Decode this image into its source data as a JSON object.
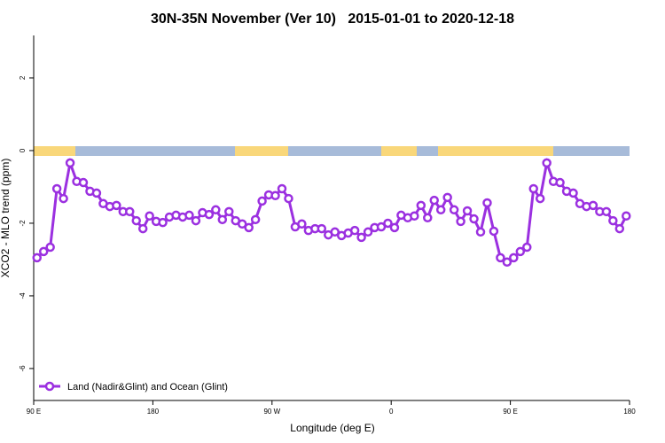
{
  "chart_data": {
    "type": "line",
    "title": "30N-35N November (Ver 10)   2015-01-01 to 2020-12-18",
    "x_label": "Longitude (deg E)",
    "y_label": "XCO2 - MLO trend (ppm)",
    "xlim": [
      90,
      540
    ],
    "ylim": [
      -6.88,
      3.17
    ],
    "xticks": [
      {
        "value": 90,
        "label": "90 E"
      },
      {
        "value": 180,
        "label": "180"
      },
      {
        "value": 270,
        "label": "90 W"
      },
      {
        "value": 360,
        "label": "0"
      },
      {
        "value": 450,
        "label": "90 E"
      },
      {
        "value": 540,
        "label": "180"
      }
    ],
    "yticks": [
      -6,
      -4,
      -2,
      0,
      2
    ],
    "legend": "bottom-left",
    "x": [
      92.5,
      97.5,
      102.5,
      107.5,
      112.5,
      117.5,
      122.5,
      127.5,
      132.5,
      137.5,
      142.5,
      147.5,
      152.5,
      157.5,
      162.5,
      167.5,
      172.5,
      177.5,
      182.5,
      187.5,
      192.5,
      197.5,
      202.5,
      207.5,
      212.5,
      217.5,
      222.5,
      227.5,
      232.5,
      237.5,
      242.5,
      247.5,
      252.5,
      257.5,
      262.5,
      267.5,
      272.5,
      277.5,
      282.5,
      287.5,
      292.5,
      297.5,
      302.5,
      307.5,
      312.5,
      317.5,
      322.5,
      327.5,
      332.5,
      337.5,
      342.5,
      347.5,
      352.5,
      357.5,
      362.5,
      367.5,
      372.5,
      377.5,
      382.5,
      387.5,
      392.5,
      397.5,
      402.5,
      407.5,
      412.5,
      417.5,
      422.5,
      427.5,
      432.5,
      437.5,
      442.5,
      447.5,
      452.5,
      457.5,
      462.5,
      467.5,
      472.5,
      477.5,
      482.5,
      487.5,
      492.5,
      497.5,
      502.5,
      507.5,
      512.5,
      517.5,
      522.5,
      527.5,
      532.5,
      537.5
    ],
    "series": [
      {
        "name": "Land (Nadir&Glint) and Ocean (Glint)",
        "color": "#9b30e0",
        "values": [
          -2.95,
          -2.78,
          -2.66,
          -1.05,
          -1.32,
          -0.34,
          -0.85,
          -0.88,
          -1.12,
          -1.17,
          -1.46,
          -1.54,
          -1.51,
          -1.68,
          -1.68,
          -1.93,
          -2.15,
          -1.8,
          -1.95,
          -1.98,
          -1.83,
          -1.78,
          -1.83,
          -1.78,
          -1.93,
          -1.71,
          -1.76,
          -1.63,
          -1.9,
          -1.68,
          -1.93,
          -2.02,
          -2.12,
          -1.9,
          -1.39,
          -1.22,
          -1.24,
          -1.05,
          -1.32,
          -2.1,
          -2.02,
          -2.2,
          -2.15,
          -2.15,
          -2.32,
          -2.24,
          -2.34,
          -2.27,
          -2.2,
          -2.39,
          -2.24,
          -2.12,
          -2.1,
          -2.0,
          -2.12,
          -1.78,
          -1.85,
          -1.8,
          -1.51,
          -1.85,
          -1.37,
          -1.63,
          -1.29,
          -1.63,
          -1.95,
          -1.66,
          -1.88,
          -2.24,
          -1.44,
          -2.22,
          -2.95,
          -3.07,
          -2.95,
          -2.78,
          -2.66,
          -1.05,
          -1.32,
          -0.34,
          -0.85,
          -0.88,
          -1.12,
          -1.17,
          -1.46,
          -1.54,
          -1.51,
          -1.68,
          -1.68,
          -1.93,
          -2.15,
          -1.8
        ]
      }
    ]
  }
}
